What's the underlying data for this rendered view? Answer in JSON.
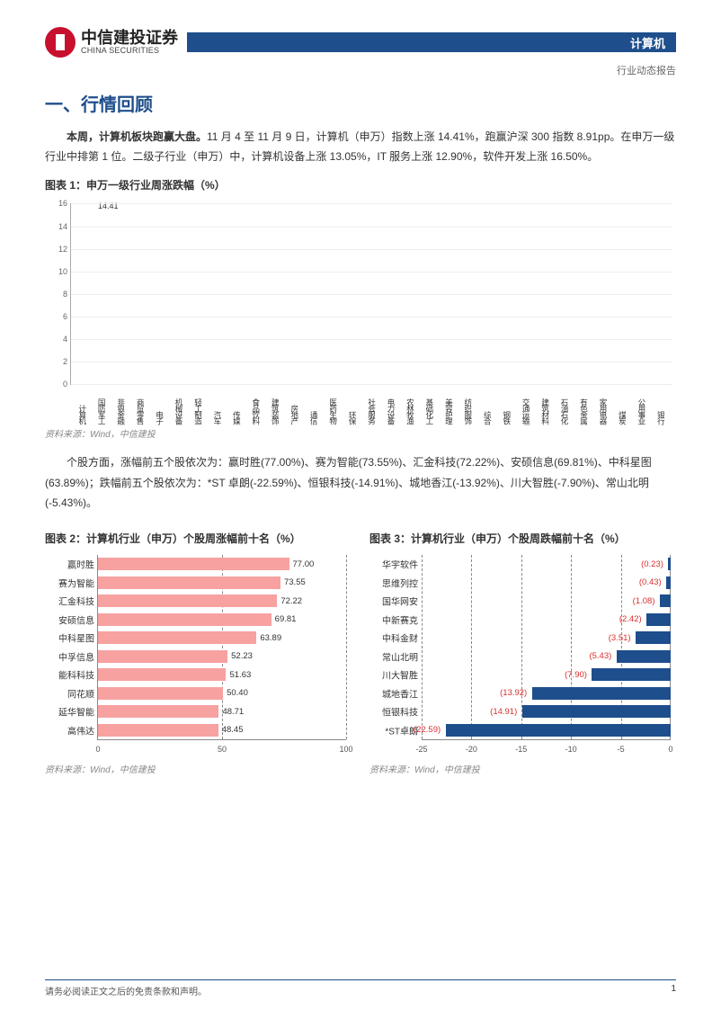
{
  "logo": {
    "cn": "中信建投证券",
    "en": "CHINA SECURITIES"
  },
  "header": {
    "category": "计算机",
    "report_type": "行业动态报告"
  },
  "section_title": "一、行情回顾",
  "paragraph1_lead": "本周，计算机板块跑赢大盘。",
  "paragraph1_rest": "11 月 4 至 11 月 9 日，计算机（申万）指数上涨 14.41%，跑赢沪深 300 指数 8.91pp。在申万一级行业中排第 1 位。二级子行业（申万）中，计算机设备上涨 13.05%，IT 服务上涨 12.90%，软件开发上涨 16.50%。",
  "chart1": {
    "title": "图表 1：申万一级行业周涨跌幅（%）",
    "ylim": [
      0,
      16
    ],
    "ytick_step": 2,
    "highlight_color": "#1e4e8c",
    "bar_color": "#f7a1a1",
    "highlight_index": 0,
    "highlight_label": "14.41",
    "categories": [
      "计算机",
      "国防军工",
      "非银金融",
      "商贸零售",
      "电子",
      "机械设备",
      "轻工制造",
      "汽车",
      "传媒",
      "食品饮料",
      "建筑装饰",
      "房地产",
      "通信",
      "医药生物",
      "环保",
      "社会服务",
      "电力设备",
      "农林牧渔",
      "基础化工",
      "美容护理",
      "纺织服饰",
      "综合",
      "钢铁",
      "交通运输",
      "建筑材料",
      "石油石化",
      "有色金属",
      "家用电器",
      "煤炭",
      "公用事业",
      "银行"
    ],
    "values": [
      14.41,
      12.3,
      12.1,
      10.5,
      9.4,
      8.0,
      7.6,
      7.5,
      7.2,
      7.1,
      6.9,
      6.7,
      6.5,
      6.3,
      6.2,
      6.1,
      6.0,
      5.9,
      5.6,
      5.5,
      5.4,
      5.4,
      5.0,
      4.9,
      4.2,
      3.7,
      3.6,
      2.6,
      2.2,
      1.9,
      1.4
    ],
    "source": "资料来源：Wind，中信建投"
  },
  "paragraph2": "个股方面，涨幅前五个股依次为：赢时胜(77.00%)、赛为智能(73.55%)、汇金科技(72.22%)、安硕信息(69.81%)、中科星图(63.89%)；跌幅前五个股依次为：*ST 卓朗(-22.59%)、恒银科技(-14.91%)、城地香江(-13.92%)、川大智胜(-7.90%)、常山北明(-5.43%)。",
  "chart2": {
    "title": "图表 2：计算机行业（申万）个股周涨幅前十名（%）",
    "xlim": [
      0,
      100
    ],
    "xtick_step": 50,
    "bar_color": "#f7a1a1",
    "label_color": "#333333",
    "items": [
      {
        "name": "赢时胜",
        "value": 77.0
      },
      {
        "name": "赛为智能",
        "value": 73.55
      },
      {
        "name": "汇金科技",
        "value": 72.22
      },
      {
        "name": "安硕信息",
        "value": 69.81
      },
      {
        "name": "中科星图",
        "value": 63.89
      },
      {
        "name": "中孚信息",
        "value": 52.23
      },
      {
        "name": "能科科技",
        "value": 51.63
      },
      {
        "name": "同花顺",
        "value": 50.4
      },
      {
        "name": "延华智能",
        "value": 48.71
      },
      {
        "name": "高伟达",
        "value": 48.45
      }
    ],
    "source": "资料来源：Wind，中信建投"
  },
  "chart3": {
    "title": "图表 3：计算机行业（申万）个股周跌幅前十名（%）",
    "xlim": [
      -25,
      0
    ],
    "xticks": [
      -25,
      -20,
      -15,
      -10,
      -5,
      0
    ],
    "bar_color": "#1e4e8c",
    "label_color": "#d9302e",
    "items": [
      {
        "name": "华宇软件",
        "value": -0.23,
        "label": "(0.23)"
      },
      {
        "name": "思维列控",
        "value": -0.43,
        "label": "(0.43)"
      },
      {
        "name": "国华网安",
        "value": -1.08,
        "label": "(1.08)"
      },
      {
        "name": "中新赛克",
        "value": -2.42,
        "label": "(2.42)"
      },
      {
        "name": "中科金财",
        "value": -3.51,
        "label": "(3.51)"
      },
      {
        "name": "常山北明",
        "value": -5.43,
        "label": "(5.43)"
      },
      {
        "name": "川大智胜",
        "value": -7.9,
        "label": "(7.90)"
      },
      {
        "name": "城地香江",
        "value": -13.92,
        "label": "(13.92)"
      },
      {
        "name": "恒银科技",
        "value": -14.91,
        "label": "(14.91)"
      },
      {
        "name": "*ST卓朗",
        "value": -22.59,
        "label": "(22.59)"
      }
    ],
    "source": "资料来源：Wind，中信建投"
  },
  "footer": {
    "disclaimer": "请务必阅读正文之后的免责条款和声明。",
    "page": "1"
  }
}
